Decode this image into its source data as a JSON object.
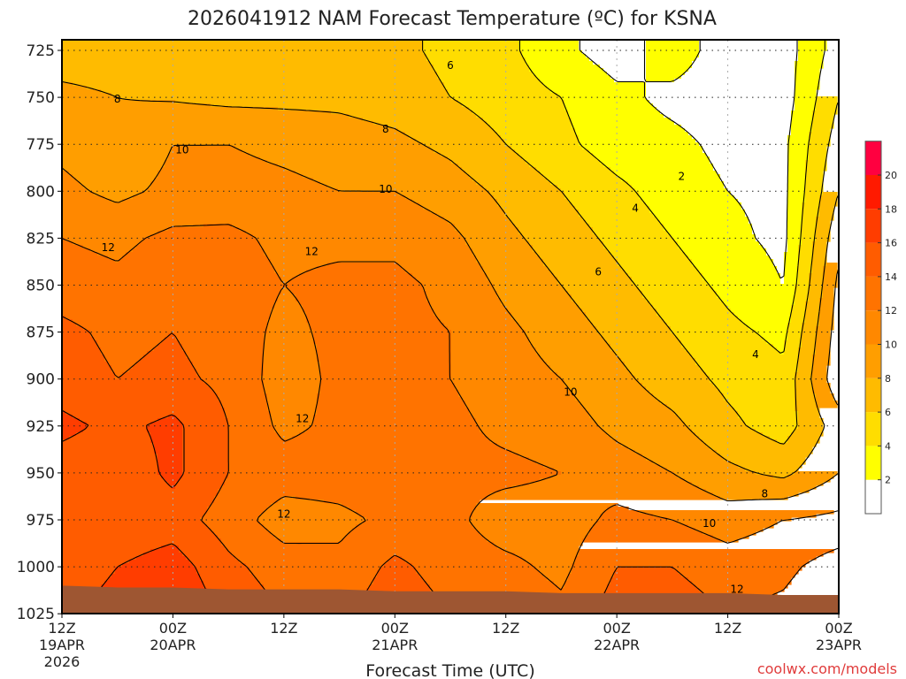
{
  "chart_data": {
    "type": "heatmap",
    "subtype": "filled-contour time-height cross-section",
    "title": "2026041912 NAM Forecast Temperature (ºC) for KSNA",
    "xlabel": "Forecast Time (UTC)",
    "ylabel": "",
    "credit": "coolwx.com/models",
    "x_hours": [
      0,
      6,
      12,
      18,
      24,
      30,
      36,
      42,
      48,
      54,
      60,
      66,
      72,
      78,
      84
    ],
    "xlim_hours": [
      0,
      84
    ],
    "x_ticks": [
      {
        "hour": 0,
        "line1": "12Z",
        "line2": "19APR",
        "line3": "2026"
      },
      {
        "hour": 12,
        "line1": "00Z",
        "line2": "20APR"
      },
      {
        "hour": 24,
        "line1": "12Z",
        "line2": ""
      },
      {
        "hour": 36,
        "line1": "00Z",
        "line2": "21APR"
      },
      {
        "hour": 48,
        "line1": "12Z",
        "line2": ""
      },
      {
        "hour": 60,
        "line1": "00Z",
        "line2": "22APR"
      },
      {
        "hour": 72,
        "line1": "12Z",
        "line2": ""
      },
      {
        "hour": 84,
        "line1": "00Z",
        "line2": "23APR"
      }
    ],
    "pressure_levels": [
      725,
      750,
      775,
      800,
      825,
      850,
      875,
      900,
      925,
      950,
      975,
      1000,
      1025
    ],
    "y_ticks": [
      "725",
      "750",
      "775",
      "800",
      "825",
      "850",
      "875",
      "900",
      "925",
      "950",
      "975",
      "1000",
      "1025"
    ],
    "ylim_hpa": [
      719,
      1025
    ],
    "temperature": [
      [
        7,
        7,
        7,
        7,
        7,
        7,
        6.5,
        5.5,
        4.5,
        2.5,
        1,
        3,
        1,
        1,
        5
      ],
      [
        8.5,
        8,
        7.8,
        7.5,
        7.5,
        7.5,
        7,
        6,
        5,
        4,
        2.5,
        1.5,
        1,
        1,
        6
      ],
      [
        9.5,
        8.5,
        10,
        10,
        9.5,
        9,
        8.5,
        7.5,
        6,
        4.5,
        3,
        2.5,
        1.5,
        1.5,
        7
      ],
      [
        10.5,
        9.5,
        10.5,
        10.8,
        10.5,
        10,
        10,
        9,
        7.5,
        6,
        4.5,
        3,
        2,
        1.5,
        8
      ],
      [
        12,
        11.5,
        12.5,
        12.5,
        11.5,
        11.5,
        11.5,
        10.5,
        8.5,
        7,
        5.5,
        4,
        2.5,
        1.5,
        9.5
      ],
      [
        13,
        12.5,
        13.5,
        13,
        12,
        12.5,
        12.5,
        11.5,
        9.5,
        8,
        6.5,
        5,
        3.5,
        2,
        10.5
      ],
      [
        14.5,
        13.5,
        14,
        13,
        11.5,
        12.5,
        12.5,
        12,
        10.5,
        9,
        7.5,
        6,
        4.5,
        3.5,
        11
      ],
      [
        15,
        14,
        14.5,
        13.5,
        11,
        12.5,
        12.5,
        12,
        11,
        10,
        8.5,
        7,
        5.5,
        4.5,
        11.5
      ],
      [
        16.5,
        15.5,
        16.5,
        14,
        11.5,
        12.5,
        13,
        12.5,
        11.5,
        11,
        9.5,
        8.5,
        6.5,
        5,
        9
      ],
      [
        15,
        14.5,
        16.5,
        14,
        13,
        13,
        13.5,
        12.5,
        12.5,
        12,
        11,
        10,
        8.5,
        7.5,
        10
      ],
      [
        14,
        14.5,
        15,
        13,
        11,
        11.5,
        12.5,
        12.5,
        11,
        11,
        12.5,
        12,
        11,
        12,
        12.5
      ],
      [
        14.5,
        16,
        17,
        14.5,
        13,
        12.5,
        14.5,
        13,
        12.5,
        11.5,
        14,
        14,
        13,
        13.5,
        15
      ],
      [
        15.5,
        17,
        18,
        15.5,
        14,
        13.5,
        15.5,
        14,
        13.5,
        12.5,
        15,
        15,
        14,
        14.5,
        16
      ]
    ],
    "surface_pressure_hpa": [
      1010,
      1011,
      1011,
      1012,
      1012,
      1012,
      1013,
      1013,
      1013,
      1014,
      1014,
      1014,
      1014,
      1015,
      1015
    ],
    "contour_levels": [
      2,
      4,
      6,
      8,
      10,
      12,
      14,
      16,
      18
    ],
    "contour_labels": [
      {
        "text": "8",
        "hour": 6,
        "p": 751
      },
      {
        "text": "6",
        "hour": 42,
        "p": 733
      },
      {
        "text": "8",
        "hour": 35,
        "p": 767
      },
      {
        "text": "10",
        "hour": 13,
        "p": 778
      },
      {
        "text": "10",
        "hour": 35,
        "p": 799
      },
      {
        "text": "12",
        "hour": 5,
        "p": 830
      },
      {
        "text": "12",
        "hour": 27,
        "p": 832
      },
      {
        "text": "12",
        "hour": 26,
        "p": 921
      },
      {
        "text": "12",
        "hour": 24,
        "p": 972
      },
      {
        "text": "10",
        "hour": 55,
        "p": 907
      },
      {
        "text": "6",
        "hour": 58,
        "p": 843
      },
      {
        "text": "4",
        "hour": 62,
        "p": 809
      },
      {
        "text": "2",
        "hour": 67,
        "p": 792
      },
      {
        "text": "4",
        "hour": 75,
        "p": 887
      },
      {
        "text": "8",
        "hour": 76,
        "p": 961
      },
      {
        "text": "10",
        "hour": 70,
        "p": 977
      },
      {
        "text": "12",
        "hour": 73,
        "p": 1012
      }
    ],
    "colorbar": {
      "levels": [
        0,
        2,
        4,
        6,
        8,
        10,
        12,
        14,
        16,
        18,
        20,
        22
      ],
      "tick_labels": [
        "2",
        "4",
        "6",
        "8",
        "10",
        "12",
        "14",
        "16",
        "18",
        "20"
      ],
      "colors": [
        "#ffffff",
        "#ffff00",
        "#ffdd00",
        "#ffbb00",
        "#ff9e00",
        "#ff8800",
        "#ff7300",
        "#ff5c00",
        "#ff3d00",
        "#ff1a00",
        "#ff0040"
      ]
    },
    "terrain_color": "#9e5632",
    "credit_color": "#e03c3c"
  }
}
